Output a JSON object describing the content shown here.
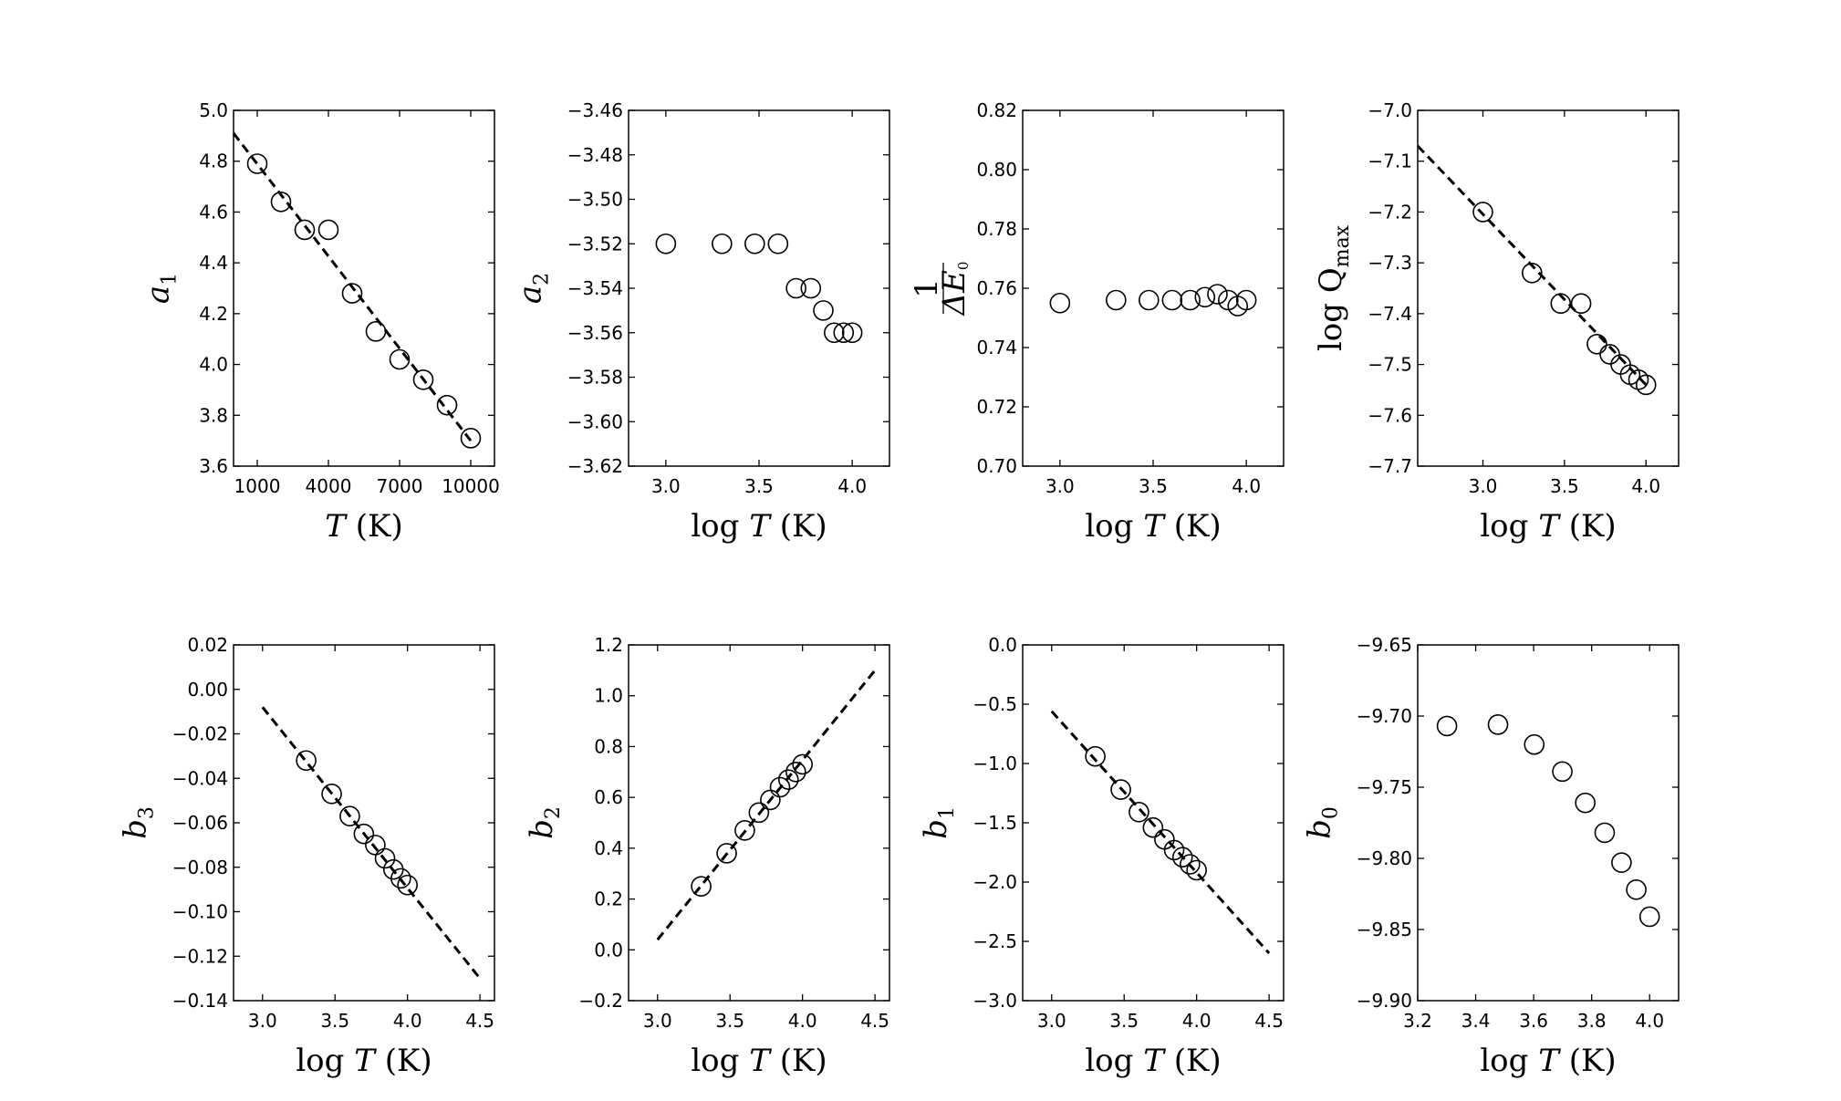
{
  "chart_data": [
    {
      "id": "a1",
      "type": "scatter",
      "xlabel": "T  (K)",
      "ylabel": "a1",
      "xlim": [
        0,
        11000
      ],
      "ylim": [
        3.6,
        5.0
      ],
      "xticks": [
        1000,
        4000,
        7000,
        10000
      ],
      "xtick_labels": [
        "1000",
        "4000",
        "7000",
        "10000"
      ],
      "yticks": [
        3.6,
        3.8,
        4.0,
        4.2,
        4.4,
        4.6,
        4.8,
        5.0
      ],
      "ytick_labels": [
        "3.6",
        "3.8",
        "4.0",
        "4.2",
        "4.4",
        "4.6",
        "4.8",
        "5.0"
      ],
      "x": [
        1000,
        2000,
        3000,
        4000,
        5000,
        6000,
        7000,
        8000,
        9000,
        10000
      ],
      "y": [
        4.79,
        4.64,
        4.53,
        4.53,
        4.28,
        4.13,
        4.02,
        3.94,
        3.84,
        3.71
      ],
      "fit_line": {
        "x": [
          0,
          10000
        ],
        "y": [
          4.91,
          3.7
        ]
      }
    },
    {
      "id": "a2",
      "type": "scatter",
      "xlabel": "log T  (K)",
      "ylabel": "a2",
      "xlim": [
        2.8,
        4.2
      ],
      "ylim": [
        -3.62,
        -3.46
      ],
      "xticks": [
        3.0,
        3.5,
        4.0
      ],
      "xtick_labels": [
        "3.0",
        "3.5",
        "4.0"
      ],
      "yticks": [
        -3.62,
        -3.6,
        -3.58,
        -3.56,
        -3.54,
        -3.52,
        -3.5,
        -3.48,
        -3.46
      ],
      "ytick_labels": [
        "−3.62",
        "−3.60",
        "−3.58",
        "−3.56",
        "−3.54",
        "−3.52",
        "−3.50",
        "−3.48",
        "−3.46"
      ],
      "x": [
        3.0,
        3.301,
        3.477,
        3.602,
        3.699,
        3.778,
        3.845,
        3.903,
        3.954,
        4.0
      ],
      "y": [
        -3.52,
        -3.52,
        -3.52,
        -3.52,
        -3.54,
        -3.54,
        -3.55,
        -3.56,
        -3.56,
        -3.56
      ]
    },
    {
      "id": "inv_dE0",
      "type": "scatter",
      "xlabel": "log T  (K)",
      "ylabel": "1/ΔE0",
      "xlim": [
        2.8,
        4.2
      ],
      "ylim": [
        0.7,
        0.82
      ],
      "xticks": [
        3.0,
        3.5,
        4.0
      ],
      "xtick_labels": [
        "3.0",
        "3.5",
        "4.0"
      ],
      "yticks": [
        0.7,
        0.72,
        0.74,
        0.76,
        0.78,
        0.8,
        0.82
      ],
      "ytick_labels": [
        "0.70",
        "0.72",
        "0.74",
        "0.76",
        "0.78",
        "0.80",
        "0.82"
      ],
      "x": [
        3.0,
        3.301,
        3.477,
        3.602,
        3.699,
        3.778,
        3.845,
        3.903,
        3.954,
        4.0
      ],
      "y": [
        0.755,
        0.756,
        0.756,
        0.756,
        0.756,
        0.757,
        0.758,
        0.756,
        0.754,
        0.756
      ]
    },
    {
      "id": "logQmax",
      "type": "scatter",
      "xlabel": "log T  (K)",
      "ylabel": "log Qmax",
      "xlim": [
        2.6,
        4.2
      ],
      "ylim": [
        -7.7,
        -7.0
      ],
      "xticks": [
        3.0,
        3.5,
        4.0
      ],
      "xtick_labels": [
        "3.0",
        "3.5",
        "4.0"
      ],
      "yticks": [
        -7.7,
        -7.6,
        -7.5,
        -7.4,
        -7.3,
        -7.2,
        -7.1,
        -7.0
      ],
      "ytick_labels": [
        "−7.7",
        "−7.6",
        "−7.5",
        "−7.4",
        "−7.3",
        "−7.2",
        "−7.1",
        "−7.0"
      ],
      "x": [
        3.0,
        3.301,
        3.477,
        3.602,
        3.699,
        3.778,
        3.845,
        3.903,
        3.954,
        4.0
      ],
      "y": [
        -7.2,
        -7.32,
        -7.38,
        -7.38,
        -7.46,
        -7.48,
        -7.5,
        -7.52,
        -7.53,
        -7.54
      ],
      "fit_line": {
        "x": [
          2.6,
          4.0
        ],
        "y": [
          -7.07,
          -7.54
        ]
      }
    },
    {
      "id": "b3",
      "type": "scatter",
      "xlabel": "log T  (K)",
      "ylabel": "b3",
      "xlim": [
        2.8,
        4.6
      ],
      "ylim": [
        -0.14,
        0.02
      ],
      "xticks": [
        3.0,
        3.5,
        4.0,
        4.5
      ],
      "xtick_labels": [
        "3.0",
        "3.5",
        "4.0",
        "4.5"
      ],
      "yticks": [
        -0.14,
        -0.12,
        -0.1,
        -0.08,
        -0.06,
        -0.04,
        -0.02,
        0.0,
        0.02
      ],
      "ytick_labels": [
        "−0.14",
        "−0.12",
        "−0.10",
        "−0.08",
        "−0.06",
        "−0.04",
        "−0.02",
        "0.00",
        "0.02"
      ],
      "x": [
        3.301,
        3.477,
        3.602,
        3.699,
        3.778,
        3.845,
        3.903,
        3.954,
        4.0
      ],
      "y": [
        -0.032,
        -0.047,
        -0.057,
        -0.065,
        -0.07,
        -0.076,
        -0.081,
        -0.085,
        -0.088
      ],
      "fit_line": {
        "x": [
          3.0,
          4.5
        ],
        "y": [
          -0.008,
          -0.13
        ]
      }
    },
    {
      "id": "b2",
      "type": "scatter",
      "xlabel": "log T  (K)",
      "ylabel": "b2",
      "xlim": [
        2.8,
        4.6
      ],
      "ylim": [
        -0.2,
        1.2
      ],
      "xticks": [
        3.0,
        3.5,
        4.0,
        4.5
      ],
      "xtick_labels": [
        "3.0",
        "3.5",
        "4.0",
        "4.5"
      ],
      "yticks": [
        -0.2,
        0.0,
        0.2,
        0.4,
        0.6,
        0.8,
        1.0,
        1.2
      ],
      "ytick_labels": [
        "−0.2",
        "0.0",
        "0.2",
        "0.4",
        "0.6",
        "0.8",
        "1.0",
        "1.2"
      ],
      "x": [
        3.301,
        3.477,
        3.602,
        3.699,
        3.778,
        3.845,
        3.903,
        3.954,
        4.0
      ],
      "y": [
        0.25,
        0.38,
        0.47,
        0.54,
        0.59,
        0.64,
        0.67,
        0.7,
        0.73
      ],
      "fit_line": {
        "x": [
          3.0,
          4.5
        ],
        "y": [
          0.04,
          1.1
        ]
      }
    },
    {
      "id": "b1",
      "type": "scatter",
      "xlabel": "log T  (K)",
      "ylabel": "b1",
      "xlim": [
        2.8,
        4.6
      ],
      "ylim": [
        -3.0,
        0.0
      ],
      "xticks": [
        3.0,
        3.5,
        4.0,
        4.5
      ],
      "xtick_labels": [
        "3.0",
        "3.5",
        "4.0",
        "4.5"
      ],
      "yticks": [
        -3.0,
        -2.5,
        -2.0,
        -1.5,
        -1.0,
        -0.5,
        0.0
      ],
      "ytick_labels": [
        "−3.0",
        "−2.5",
        "−2.0",
        "−1.5",
        "−1.0",
        "−0.5",
        "0.0"
      ],
      "x": [
        3.301,
        3.477,
        3.602,
        3.699,
        3.778,
        3.845,
        3.903,
        3.954,
        4.0
      ],
      "y": [
        -0.94,
        -1.22,
        -1.41,
        -1.54,
        -1.64,
        -1.73,
        -1.79,
        -1.85,
        -1.9
      ],
      "fit_line": {
        "x": [
          3.0,
          4.5
        ],
        "y": [
          -0.56,
          -2.6
        ]
      }
    },
    {
      "id": "b0",
      "type": "scatter",
      "xlabel": "log T  (K)",
      "ylabel": "b0",
      "xlim": [
        3.2,
        4.1
      ],
      "ylim": [
        -9.9,
        -9.65
      ],
      "xticks": [
        3.2,
        3.4,
        3.6,
        3.8,
        4.0
      ],
      "xtick_labels": [
        "3.2",
        "3.4",
        "3.6",
        "3.8",
        "4.0"
      ],
      "yticks": [
        -9.9,
        -9.85,
        -9.8,
        -9.75,
        -9.7,
        -9.65
      ],
      "ytick_labels": [
        "−9.90",
        "−9.85",
        "−9.80",
        "−9.75",
        "−9.70",
        "−9.65"
      ],
      "x": [
        3.301,
        3.477,
        3.602,
        3.699,
        3.778,
        3.845,
        3.903,
        3.954,
        4.0
      ],
      "y": [
        -9.707,
        -9.706,
        -9.72,
        -9.739,
        -9.761,
        -9.782,
        -9.803,
        -9.822,
        -9.841
      ]
    }
  ]
}
